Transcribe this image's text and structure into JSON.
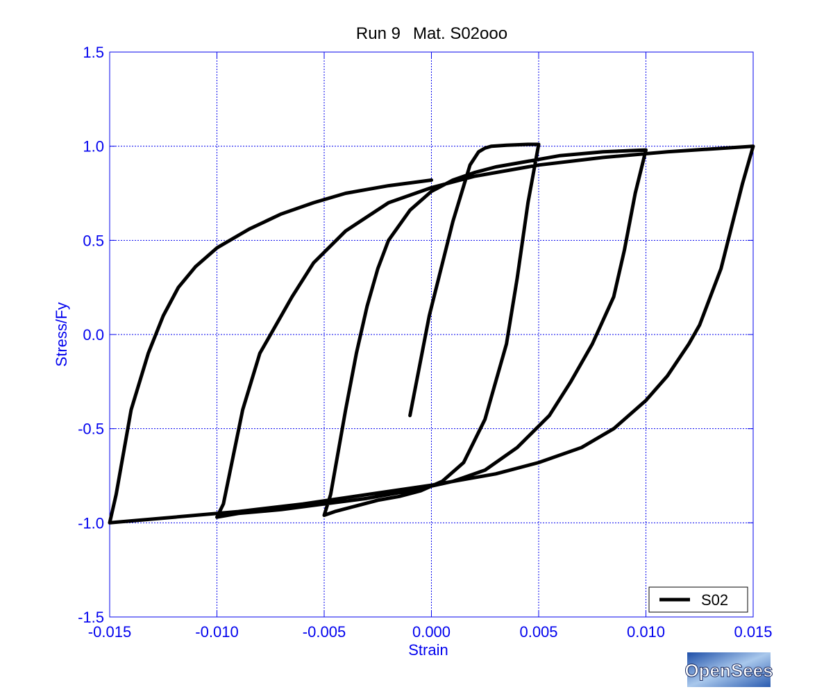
{
  "chart_data": {
    "type": "line",
    "title_parts": [
      "Run 9",
      "Mat. S02ooo"
    ],
    "xlabel": "Strain",
    "ylabel": "Stress/Fy",
    "xlim": [
      -0.015,
      0.015
    ],
    "ylim": [
      -1.5,
      1.5
    ],
    "xticks": [
      -0.015,
      -0.01,
      -0.005,
      0.0,
      0.005,
      0.01,
      0.015
    ],
    "xtick_labels": [
      "-0.015",
      "-0.010",
      "-0.005",
      "0.000",
      "0.005",
      "0.010",
      "0.015"
    ],
    "yticks": [
      -1.5,
      -1.0,
      -0.5,
      0.0,
      0.5,
      1.0,
      1.5
    ],
    "ytick_labels": [
      "-1.5",
      "-1.0",
      "-0.5",
      "0.0",
      "0.5",
      "1.0",
      "1.5"
    ],
    "grid": true,
    "legend_position": "bottom-right",
    "colors": {
      "axis": "#0000ee",
      "grid": "#0000ee",
      "series": "#000000",
      "text": "#000000"
    },
    "logo_text": "OpenSees",
    "series": [
      {
        "name": "S02",
        "color": "#000000",
        "x": [
          -0.001,
          -0.0001,
          0.001,
          0.0018,
          0.0022,
          0.0025,
          0.0028,
          0.0035,
          0.0045,
          0.005,
          0.0045,
          0.004,
          0.0035,
          0.0025,
          0.0015,
          0.0005,
          -0.0005,
          -0.0015,
          -0.0025,
          -0.0035,
          -0.0045,
          -0.005,
          -0.0047,
          -0.004,
          -0.0035,
          -0.003,
          -0.0025,
          -0.002,
          -0.001,
          0.0,
          0.001,
          0.002,
          0.003,
          0.0045,
          0.006,
          0.008,
          0.01,
          0.0095,
          0.009,
          0.0085,
          0.0075,
          0.0065,
          0.0055,
          0.004,
          0.0025,
          0.001,
          -0.001,
          -0.003,
          -0.005,
          -0.007,
          -0.009,
          -0.01,
          -0.0097,
          -0.0088,
          -0.008,
          -0.0075,
          -0.0065,
          -0.0055,
          -0.004,
          -0.002,
          0.0,
          0.002,
          0.005,
          0.008,
          0.011,
          0.015,
          0.0145,
          0.0135,
          0.0125,
          0.012,
          0.011,
          0.01,
          0.0085,
          0.007,
          0.005,
          0.003,
          0.0,
          -0.003,
          -0.006,
          -0.009,
          -0.012,
          -0.015,
          -0.0147,
          -0.014,
          -0.0132,
          -0.0125,
          -0.0118,
          -0.011,
          -0.01,
          -0.0085,
          -0.007,
          -0.0055,
          -0.004,
          -0.002,
          0.0
        ],
        "y": [
          -0.43,
          0.1,
          0.6,
          0.9,
          0.97,
          0.99,
          1.0,
          1.005,
          1.01,
          1.01,
          0.7,
          0.3,
          -0.05,
          -0.45,
          -0.68,
          -0.78,
          -0.83,
          -0.86,
          -0.88,
          -0.91,
          -0.94,
          -0.96,
          -0.85,
          -0.4,
          -0.1,
          0.15,
          0.35,
          0.5,
          0.66,
          0.76,
          0.82,
          0.86,
          0.89,
          0.92,
          0.95,
          0.97,
          0.98,
          0.75,
          0.45,
          0.2,
          -0.05,
          -0.25,
          -0.43,
          -0.6,
          -0.72,
          -0.78,
          -0.83,
          -0.87,
          -0.9,
          -0.93,
          -0.95,
          -0.97,
          -0.9,
          -0.4,
          -0.1,
          0.0,
          0.2,
          0.38,
          0.55,
          0.7,
          0.78,
          0.84,
          0.9,
          0.94,
          0.97,
          1.0,
          0.8,
          0.35,
          0.05,
          -0.05,
          -0.22,
          -0.35,
          -0.5,
          -0.6,
          -0.68,
          -0.74,
          -0.8,
          -0.85,
          -0.9,
          -0.94,
          -0.97,
          -1.0,
          -0.85,
          -0.4,
          -0.1,
          0.1,
          0.25,
          0.36,
          0.46,
          0.56,
          0.64,
          0.7,
          0.75,
          0.79,
          0.82
        ]
      }
    ]
  }
}
